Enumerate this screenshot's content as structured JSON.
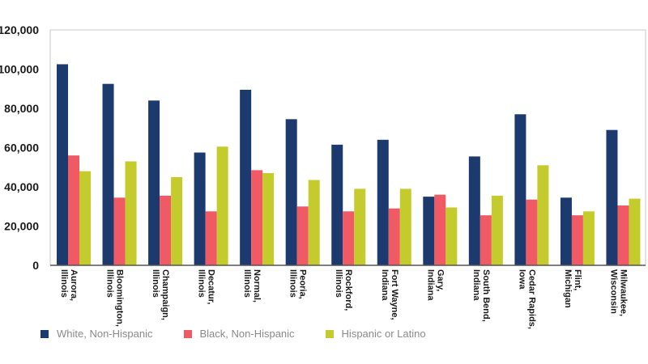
{
  "chart_data": {
    "type": "bar",
    "categories": [
      [
        "Aurora,",
        "Illinois"
      ],
      [
        "Bloomington,",
        "Illinois"
      ],
      [
        "Champaign,",
        "Illinois"
      ],
      [
        "Decatur,",
        "Illinois"
      ],
      [
        "Normal,",
        "Illinois"
      ],
      [
        "Peoria,",
        "Illinois"
      ],
      [
        "Rockford,",
        "Illinois"
      ],
      [
        "Fort Wayne,",
        "Indiana"
      ],
      [
        "Gary,",
        "Indiana"
      ],
      [
        "South Bend,",
        "Indiana"
      ],
      [
        "Cedar Rapids,",
        "Iowa"
      ],
      [
        "Flint,",
        "Michigan"
      ],
      [
        "Milwaukee,",
        "Wisconsin"
      ]
    ],
    "series": [
      {
        "name": "White, Non-Hispanic",
        "color": "#1c3a6e",
        "values": [
          102500,
          92500,
          84000,
          57500,
          89500,
          74500,
          61500,
          64000,
          35000,
          55500,
          77000,
          34500,
          69000
        ]
      },
      {
        "name": "Black, Non-Hispanic",
        "color": "#f05a64",
        "values": [
          56000,
          34500,
          35500,
          27500,
          48500,
          30000,
          27500,
          29000,
          36000,
          25500,
          33500,
          25500,
          30500
        ]
      },
      {
        "name": "Hispanic or Latino",
        "color": "#c3cc2c",
        "values": [
          48000,
          53000,
          45000,
          60500,
          47000,
          43500,
          39000,
          39000,
          29500,
          35500,
          51000,
          27500,
          34000
        ]
      }
    ],
    "yticks": [
      "0",
      "20,000",
      "40,000",
      "60,000",
      "80,000",
      "100,000",
      "120,000"
    ],
    "ylim": [
      0,
      120000
    ],
    "grid": false,
    "legend_position": "bottom-left"
  }
}
